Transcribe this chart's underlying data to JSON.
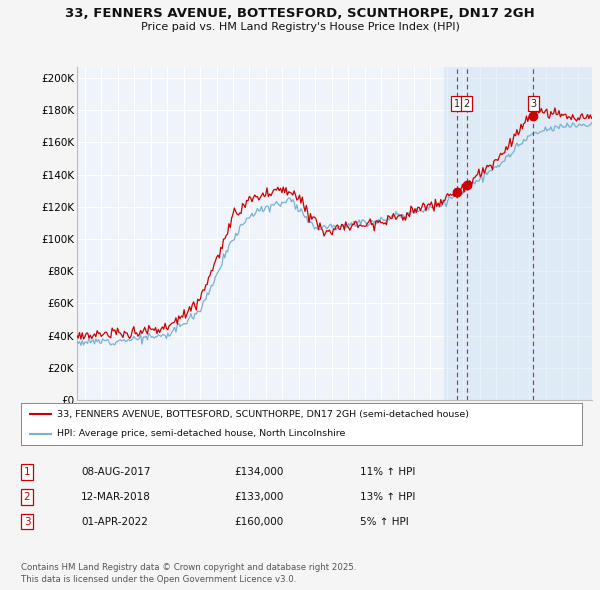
{
  "title_line1": "33, FENNERS AVENUE, BOTTESFORD, SCUNTHORPE, DN17 2GH",
  "title_line2": "Price paid vs. HM Land Registry's House Price Index (HPI)",
  "ylabel_ticks": [
    "£0",
    "£20K",
    "£40K",
    "£60K",
    "£80K",
    "£100K",
    "£120K",
    "£140K",
    "£160K",
    "£180K",
    "£200K"
  ],
  "ytick_values": [
    0,
    20000,
    40000,
    60000,
    80000,
    100000,
    120000,
    140000,
    160000,
    180000,
    200000
  ],
  "xmin": 1994.5,
  "xmax": 2025.8,
  "ymin": 0,
  "ymax": 207000,
  "sale_color": "#cc0000",
  "hpi_color": "#7ab0d4",
  "chart_bg": "#eef4fa",
  "chart_bg_right": "#ddeeff",
  "grid_color": "#ffffff",
  "sale_label": "33, FENNERS AVENUE, BOTTESFORD, SCUNTHORPE, DN17 2GH (semi-detached house)",
  "hpi_label": "HPI: Average price, semi-detached house, North Lincolnshire",
  "transactions": [
    {
      "num": 1,
      "date": "08-AUG-2017",
      "price": "134,000",
      "pct": "11%",
      "dir": "↑",
      "x": 2017.6
    },
    {
      "num": 2,
      "date": "12-MAR-2018",
      "price": "133,000",
      "pct": "13%",
      "dir": "↑",
      "x": 2018.2
    },
    {
      "num": 3,
      "date": "01-APR-2022",
      "price": "160,000",
      "pct": "5%",
      "dir": "↑",
      "x": 2022.25
    }
  ],
  "footer": "Contains HM Land Registry data © Crown copyright and database right 2025.\nThis data is licensed under the Open Government Licence v3.0."
}
